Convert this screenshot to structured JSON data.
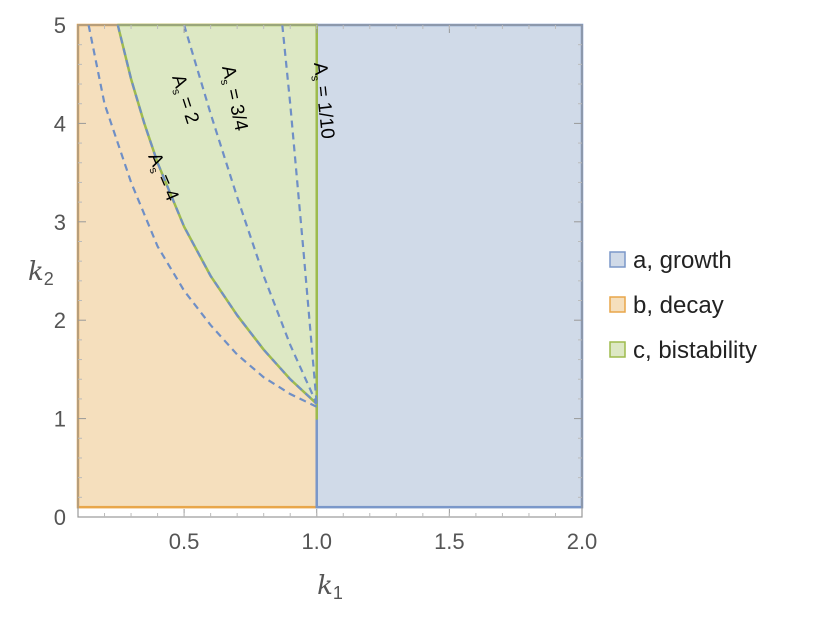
{
  "chart_data": {
    "type": "area",
    "xlabel": "k",
    "xlabel_sub": "1",
    "ylabel": "k",
    "ylabel_sub": "2",
    "xlim": [
      0.1,
      2.0
    ],
    "ylim": [
      0,
      5
    ],
    "x_ticks": [
      {
        "value": 0.5,
        "label": "0.5"
      },
      {
        "value": 1.0,
        "label": "1.0"
      },
      {
        "value": 1.5,
        "label": "1.5"
      },
      {
        "value": 2.0,
        "label": "2.0"
      }
    ],
    "y_ticks": [
      {
        "value": 0,
        "label": "0"
      },
      {
        "value": 1,
        "label": "1"
      },
      {
        "value": 2,
        "label": "2"
      },
      {
        "value": 3,
        "label": "3"
      },
      {
        "value": 4,
        "label": "4"
      },
      {
        "value": 5,
        "label": "5"
      }
    ],
    "regions": [
      {
        "name": "a, growth",
        "color": "#d0dae8",
        "edge": "#7a97c9",
        "x_range": [
          1.0,
          2.0
        ],
        "y_range": [
          0.1,
          5.0
        ]
      },
      {
        "name": "b, decay",
        "color": "#f5dfbd",
        "edge": "#e8a64a",
        "x_range": [
          0.1,
          1.0
        ],
        "y_range": [
          0.1,
          5.0
        ]
      },
      {
        "name": "c, bistability",
        "color": "#dde8c4",
        "edge": "#9dbb4d",
        "bounded_by": "As = 2 curve and k1 = 1",
        "y_range": [
          1.0,
          5.0
        ]
      }
    ],
    "boundary_curves": [
      {
        "label_main": "A",
        "label_sub": "s",
        "label_rest": " = 4",
        "As": 4,
        "style": "dashed",
        "color": "#6f8fc6",
        "points": [
          [
            0.14,
            5.0
          ],
          [
            0.2,
            4.2
          ],
          [
            0.3,
            3.4
          ],
          [
            0.4,
            2.75
          ],
          [
            0.5,
            2.3
          ],
          [
            0.6,
            1.95
          ],
          [
            0.7,
            1.65
          ],
          [
            0.8,
            1.42
          ],
          [
            0.9,
            1.25
          ],
          [
            1.0,
            1.12
          ]
        ]
      },
      {
        "label_main": "A",
        "label_sub": "s",
        "label_rest": " = 2",
        "As": 2,
        "style": "dashed",
        "color": "#6f8fc6",
        "points": [
          [
            0.25,
            5.0
          ],
          [
            0.3,
            4.45
          ],
          [
            0.35,
            4.0
          ],
          [
            0.4,
            3.6
          ],
          [
            0.5,
            2.95
          ],
          [
            0.6,
            2.45
          ],
          [
            0.7,
            2.05
          ],
          [
            0.8,
            1.7
          ],
          [
            0.9,
            1.4
          ],
          [
            1.0,
            1.15
          ]
        ]
      },
      {
        "label_main": "A",
        "label_sub": "s",
        "label_rest": " = 3/4",
        "As": 0.75,
        "style": "dashed",
        "color": "#6f8fc6",
        "points": [
          [
            0.5,
            5.0
          ],
          [
            0.6,
            4.1
          ],
          [
            0.7,
            3.25
          ],
          [
            0.8,
            2.45
          ],
          [
            0.9,
            1.75
          ],
          [
            1.0,
            1.15
          ]
        ]
      },
      {
        "label_main": "A",
        "label_sub": "s",
        "label_rest": " = 1/10",
        "As": 0.1,
        "style": "dashed",
        "color": "#6f8fc6",
        "points": [
          [
            0.87,
            5.0
          ],
          [
            0.9,
            4.2
          ],
          [
            0.95,
            2.7
          ],
          [
            1.0,
            1.15
          ]
        ]
      }
    ],
    "legend": {
      "placement": "right"
    }
  }
}
